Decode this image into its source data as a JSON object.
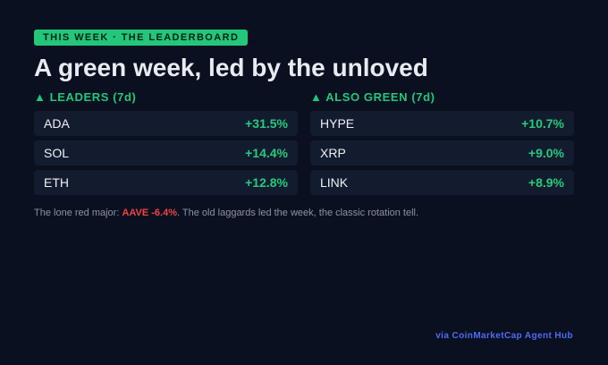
{
  "badge": "THIS WEEK · THE LEADERBOARD",
  "title": "A green week, led by the unloved",
  "sections": [
    {
      "heading": "▲ LEADERS (7d)",
      "rows": [
        {
          "name": "ADA",
          "change": "+31.5%"
        },
        {
          "name": "SOL",
          "change": "+14.4%"
        },
        {
          "name": "ETH",
          "change": "+12.8%"
        }
      ]
    },
    {
      "heading": "▲ ALSO GREEN (7d)",
      "rows": [
        {
          "name": "HYPE",
          "change": "+10.7%"
        },
        {
          "name": "XRP",
          "change": "+9.0%"
        },
        {
          "name": "LINK",
          "change": "+8.9%"
        }
      ]
    }
  ],
  "note": {
    "lead": "The lone red major: ",
    "highlight": "AAVE -6.4%",
    "rest": ". The old laggards led the week, the classic rotation tell."
  },
  "footer": "via CoinMarketCap Agent Hub"
}
